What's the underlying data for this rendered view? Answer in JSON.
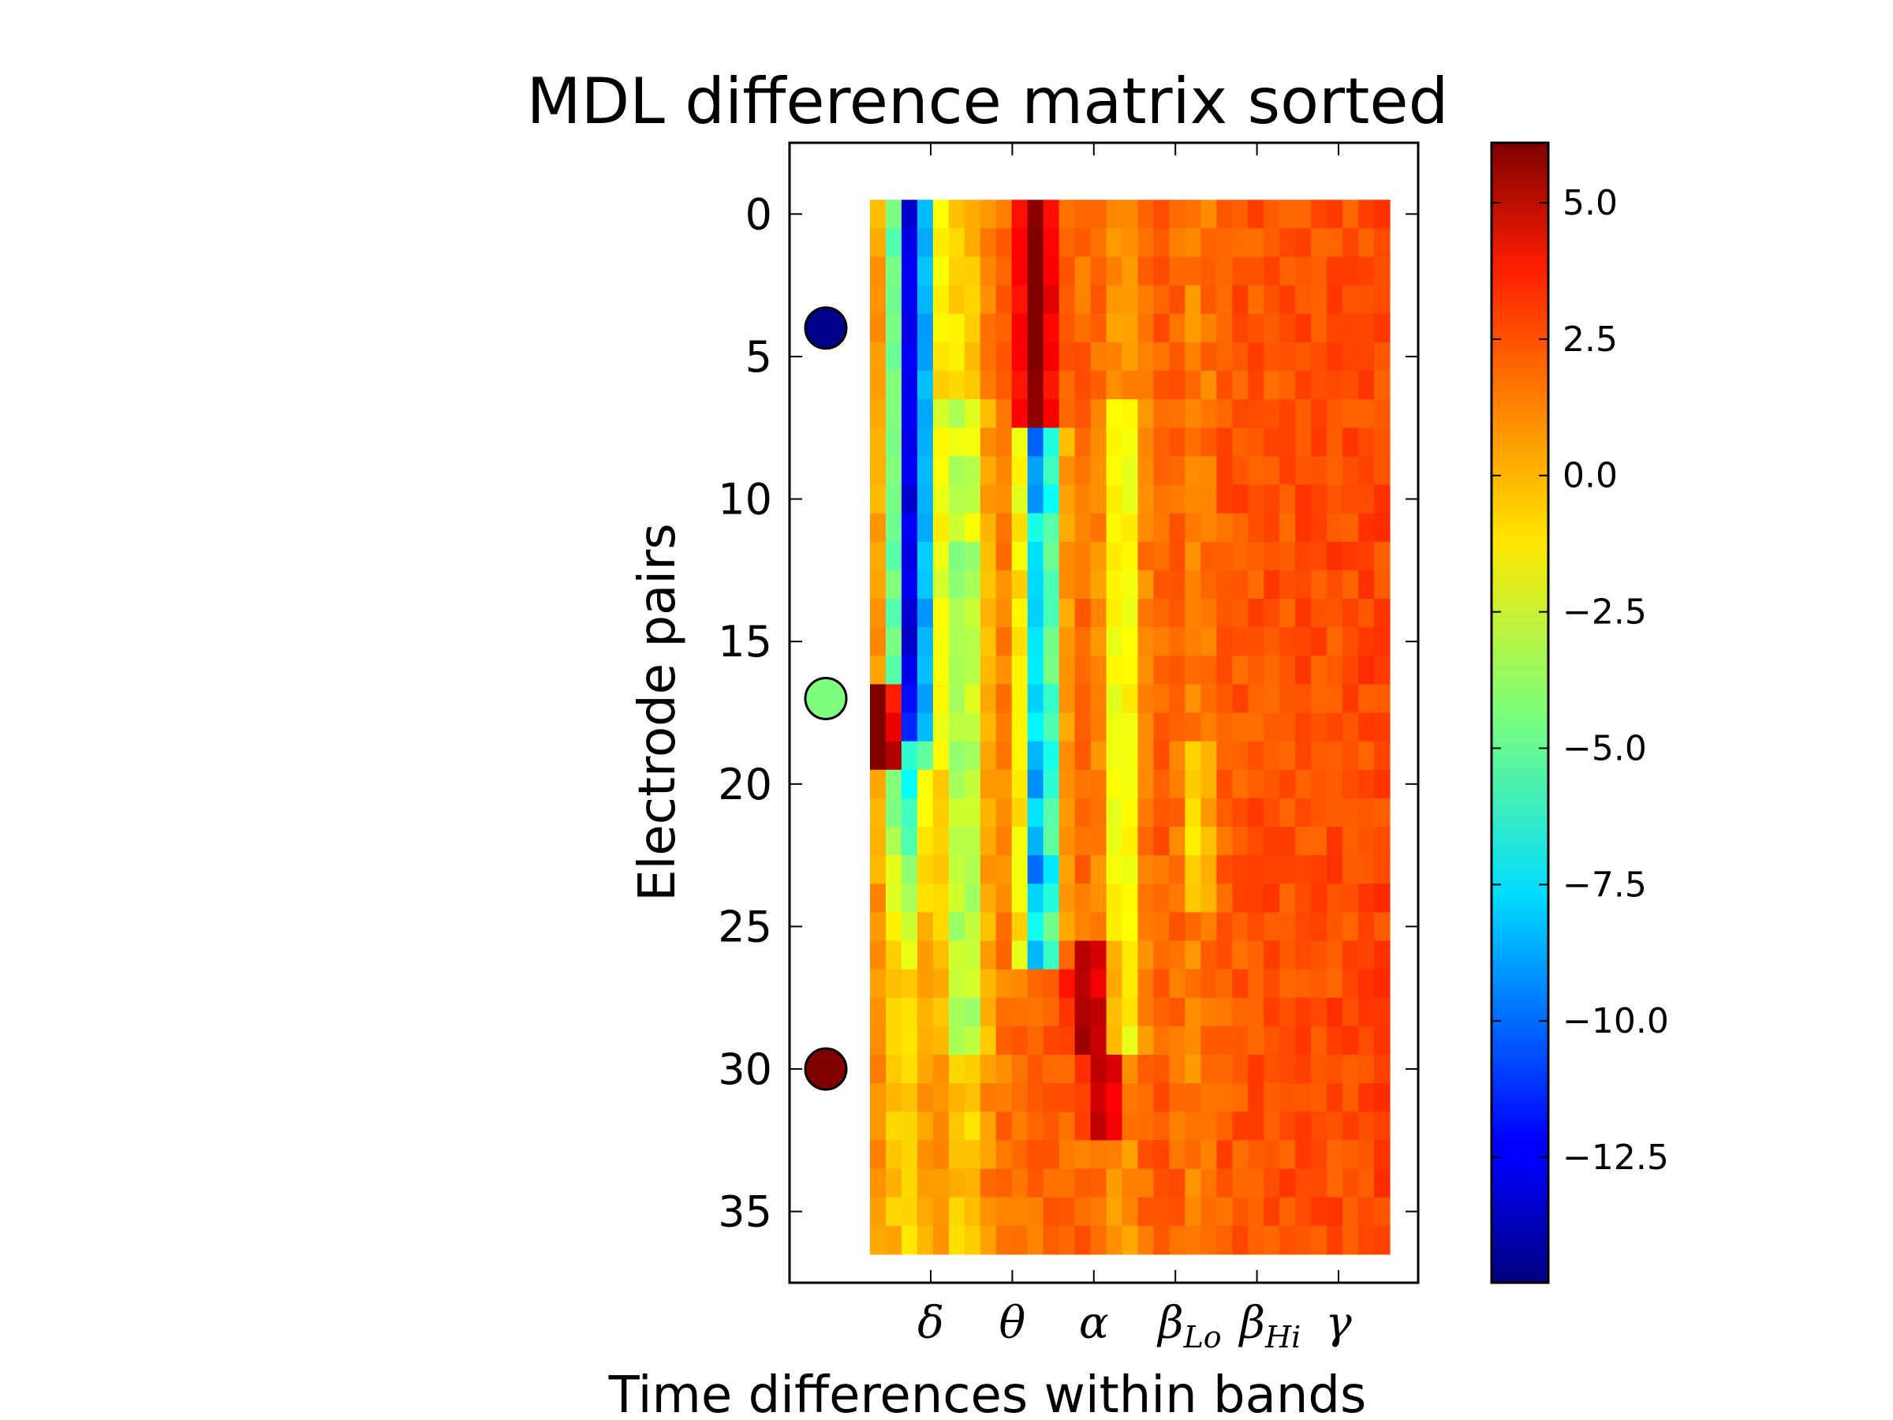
{
  "chart_data": {
    "type": "heatmap",
    "title": "MDL difference matrix sorted",
    "xlabel": "Time differences within bands",
    "ylabel": "Electrode pairs",
    "rows": 37,
    "cols": 33,
    "ylim": [
      -2.5,
      37.5
    ],
    "yticks": [
      0,
      5,
      10,
      15,
      20,
      25,
      30,
      35
    ],
    "x_band_ticks": [
      {
        "base": "δ",
        "sub": ""
      },
      {
        "base": "θ",
        "sub": ""
      },
      {
        "base": "α",
        "sub": ""
      },
      {
        "base": "β",
        "sub": "Lo"
      },
      {
        "base": "β",
        "sub": "Hi"
      },
      {
        "base": "γ",
        "sub": ""
      }
    ],
    "colorbar": {
      "colormap": "jet",
      "vmin": -14.8,
      "vmax": 6.1,
      "ticks": [
        5.0,
        2.5,
        0.0,
        -2.5,
        -5.0,
        -7.5,
        -10.0,
        -12.5
      ],
      "tick_labels": [
        "5.0",
        "2.5",
        "0.0",
        "−2.5",
        "−5.0",
        "−7.5",
        "−10.0",
        "−12.5"
      ]
    },
    "markers": [
      {
        "row": 4,
        "color": "#00008b"
      },
      {
        "row": 17,
        "color": "#7fff7f"
      },
      {
        "row": 30,
        "color": "#800000"
      }
    ]
  }
}
